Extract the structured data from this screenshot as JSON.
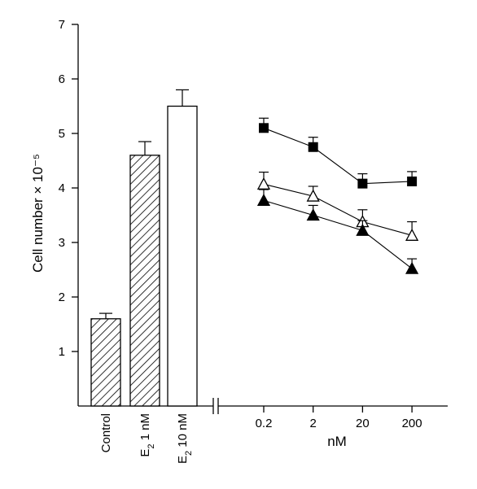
{
  "chart_data": {
    "type": "bar",
    "ylabel": "Cell number × 10⁻⁵",
    "ylim": [
      0,
      7
    ],
    "yticks": [
      "1",
      "2",
      "3",
      "4",
      "5",
      "6",
      "7"
    ],
    "bars": [
      {
        "label_main": "Control",
        "label_sub": "",
        "label_unit": "",
        "value": 1.6,
        "error": 0.1,
        "pattern": "hatch"
      },
      {
        "label_main": "E",
        "label_sub": "2",
        "label_unit": " 1 nM",
        "value": 4.6,
        "error": 0.25,
        "pattern": "hatch"
      },
      {
        "label_main": "E",
        "label_sub": "2",
        "label_unit": " 10 nM",
        "value": 5.5,
        "error": 0.3,
        "pattern": "open"
      }
    ],
    "line_panel": {
      "type": "line",
      "xscale": "log",
      "xlabel": "nM",
      "x": [
        0.2,
        2,
        20,
        200
      ],
      "xticklabels": [
        "0.2",
        "2",
        "20",
        "200"
      ],
      "series": [
        {
          "marker": "filled-square",
          "values": [
            5.1,
            4.75,
            4.08,
            4.12
          ],
          "errors": [
            0.18,
            0.18,
            0.18,
            0.18
          ]
        },
        {
          "marker": "open-triangle",
          "values": [
            4.07,
            3.85,
            3.38,
            3.13
          ],
          "errors": [
            0.22,
            0.18,
            0.22,
            0.25
          ]
        },
        {
          "marker": "filled-triangle",
          "values": [
            3.77,
            3.5,
            3.22,
            2.52
          ],
          "errors": [
            0.2,
            0.18,
            0.18,
            0.18
          ]
        }
      ]
    }
  }
}
